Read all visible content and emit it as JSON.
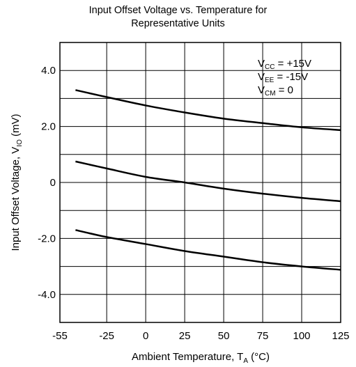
{
  "chart_data": {
    "type": "line",
    "title_line1": "Input Offset Voltage vs. Temperature for",
    "title_line2": "Representative Units",
    "xlabel": {
      "main": "Ambient Temperature, T",
      "sub": "A",
      "tail": " (°C)"
    },
    "ylabel": {
      "main": "Input Offset Voltage, V",
      "sub": "IO",
      "tail": " (mV)"
    },
    "xlim": [
      -55,
      125
    ],
    "ylim": [
      -5,
      5
    ],
    "x_ticks": [
      -55,
      -25,
      0,
      25,
      50,
      75,
      100,
      125
    ],
    "x_tick_labels": [
      "-55",
      "-25",
      "0",
      "25",
      "50",
      "75",
      "100",
      "125"
    ],
    "x_grid": [
      -55,
      -25,
      0,
      25,
      50,
      75,
      100,
      125
    ],
    "y_tick_values": [
      4,
      2,
      0,
      -2,
      -4
    ],
    "y_tick_labels": [
      "4.0",
      "2.0",
      "0",
      "-2.0",
      "-4.0"
    ],
    "y_grid": [
      -5,
      -4,
      -3,
      -2,
      -1,
      0,
      1,
      2,
      3,
      4,
      5
    ],
    "grid": true,
    "annotations": [
      {
        "main": "V",
        "sub": "CC",
        "tail": " = +15V"
      },
      {
        "main": "V",
        "sub": "EE",
        "tail": " = -15V"
      },
      {
        "main": "V",
        "sub": "CM",
        "tail": " = 0"
      }
    ],
    "series": [
      {
        "x": [
          -45,
          -25,
          0,
          25,
          50,
          75,
          100,
          125
        ],
        "values": [
          3.3,
          3.05,
          2.75,
          2.5,
          2.28,
          2.12,
          1.97,
          1.87
        ]
      },
      {
        "x": [
          -45,
          -25,
          0,
          25,
          50,
          75,
          100,
          125
        ],
        "values": [
          0.75,
          0.5,
          0.2,
          0.0,
          -0.22,
          -0.4,
          -0.55,
          -0.67
        ]
      },
      {
        "x": [
          -45,
          -25,
          0,
          25,
          50,
          75,
          100,
          125
        ],
        "values": [
          -1.7,
          -1.95,
          -2.2,
          -2.45,
          -2.65,
          -2.85,
          -3.0,
          -3.12
        ]
      }
    ]
  }
}
